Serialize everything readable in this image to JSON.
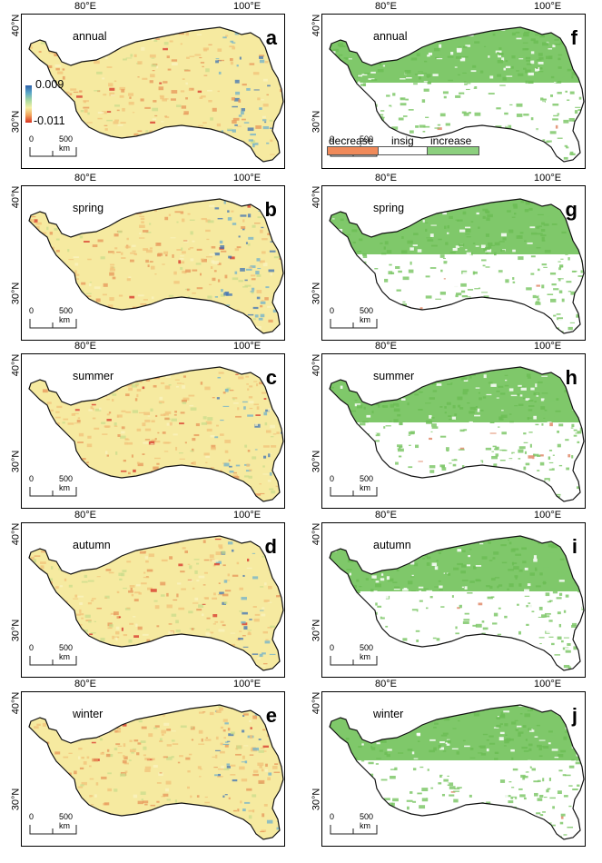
{
  "axes": {
    "lon_left": "80°E",
    "lon_right": "100°E",
    "lat_top": "40°N",
    "lat_bottom": "30°N"
  },
  "scale": {
    "zero": "0",
    "dist": "500 km"
  },
  "colorbar": {
    "max": "0.009",
    "min": "-0.011",
    "colors": [
      "#2b5fa8",
      "#5aa6c8",
      "#a7d9a0",
      "#f4f0a4",
      "#f2a35a",
      "#d7301f"
    ]
  },
  "legend": {
    "decrease": "decrease",
    "insig": "insig",
    "increase": "increase",
    "colors": {
      "decrease": "#f08a5a",
      "insig": "#ffffff",
      "increase": "#8ccf7e"
    }
  },
  "panels": [
    {
      "letter": "a",
      "season": "annual",
      "kind": "slope"
    },
    {
      "letter": "f",
      "season": "annual",
      "kind": "signif"
    },
    {
      "letter": "b",
      "season": "spring",
      "kind": "slope"
    },
    {
      "letter": "g",
      "season": "spring",
      "kind": "signif"
    },
    {
      "letter": "c",
      "season": "summer",
      "kind": "slope"
    },
    {
      "letter": "h",
      "season": "summer",
      "kind": "signif"
    },
    {
      "letter": "d",
      "season": "autumn",
      "kind": "slope"
    },
    {
      "letter": "i",
      "season": "autumn",
      "kind": "signif"
    },
    {
      "letter": "e",
      "season": "winter",
      "kind": "slope"
    },
    {
      "letter": "j",
      "season": "winter",
      "kind": "signif"
    }
  ]
}
